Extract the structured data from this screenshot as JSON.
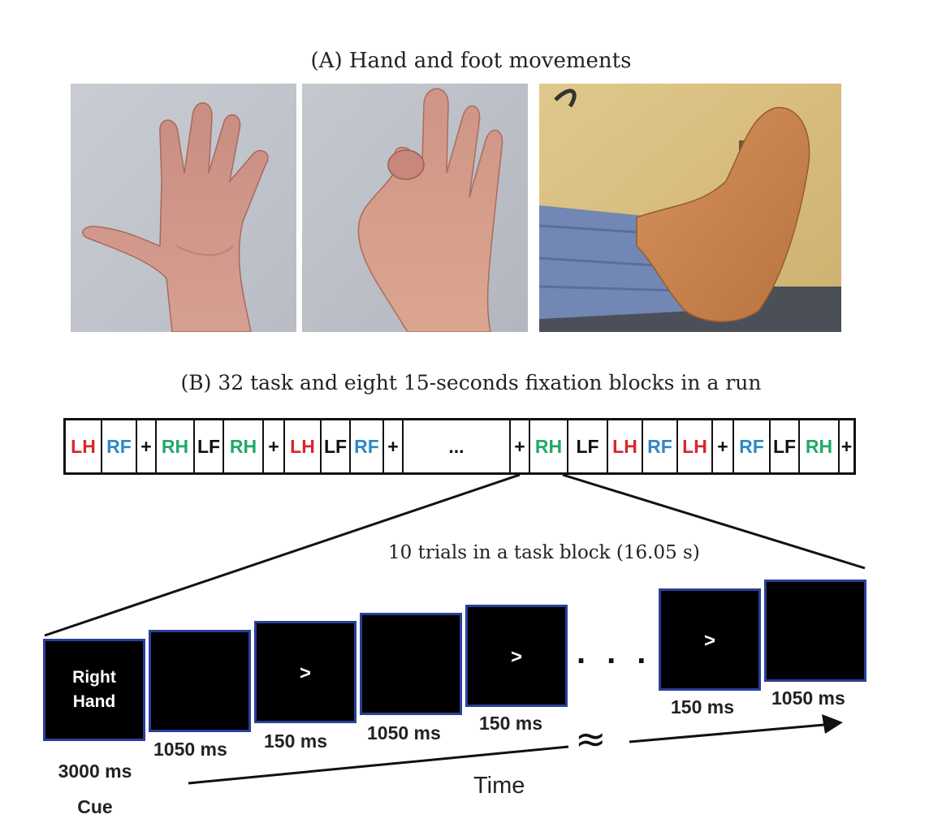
{
  "panel_a": {
    "title": "(A) Hand and foot movements"
  },
  "panel_b": {
    "title": "(B) 32 task and eight 15-seconds fixation blocks in a run",
    "sequence": [
      {
        "label": "LH",
        "color": "#d8262c",
        "w": 44
      },
      {
        "label": "RF",
        "color": "#2f88c8",
        "w": 42
      },
      {
        "label": "+",
        "color": "#111111",
        "w": 24
      },
      {
        "label": "RH",
        "color": "#23a86a",
        "w": 46
      },
      {
        "label": "LF",
        "color": "#111111",
        "w": 36
      },
      {
        "label": "RH",
        "color": "#23a86a",
        "w": 48
      },
      {
        "label": "+",
        "color": "#111111",
        "w": 26
      },
      {
        "label": "LH",
        "color": "#d8262c",
        "w": 44
      },
      {
        "label": "LF",
        "color": "#111111",
        "w": 36
      },
      {
        "label": "RF",
        "color": "#2f88c8",
        "w": 40
      },
      {
        "label": "+",
        "color": "#111111",
        "w": 24
      },
      {
        "label": "...",
        "color": "#111111",
        "w": 130
      },
      {
        "label": "+",
        "color": "#111111",
        "w": 24
      },
      {
        "label": "RH",
        "color": "#23a86a",
        "w": 46
      },
      {
        "label": "LF",
        "color": "#111111",
        "w": 48
      },
      {
        "label": "LH",
        "color": "#d8262c",
        "w": 42
      },
      {
        "label": "RF",
        "color": "#2f88c8",
        "w": 42
      },
      {
        "label": "LH",
        "color": "#d8262c",
        "w": 42
      },
      {
        "label": "+",
        "color": "#111111",
        "w": 26
      },
      {
        "label": "RF",
        "color": "#2f88c8",
        "w": 44
      },
      {
        "label": "LF",
        "color": "#111111",
        "w": 36
      },
      {
        "label": "RH",
        "color": "#23a86a",
        "w": 48
      },
      {
        "label": "+",
        "color": "#111111",
        "w": 20
      }
    ],
    "trials_label": "10 trials in a task block (16.05 s)",
    "screens": [
      {
        "text": "Right\nHand",
        "duration": "3000 ms\nCue"
      },
      {
        "text": "",
        "duration": "1050 ms"
      },
      {
        "text": ">",
        "duration": "150 ms"
      },
      {
        "text": "",
        "duration": "1050 ms"
      },
      {
        "text": ">",
        "duration": "150 ms"
      },
      {
        "text": ">",
        "duration": "150 ms"
      },
      {
        "text": "",
        "duration": "1050 ms"
      }
    ],
    "ellipsis": "...",
    "approx_symbol": "≈",
    "time_label": "Time"
  }
}
